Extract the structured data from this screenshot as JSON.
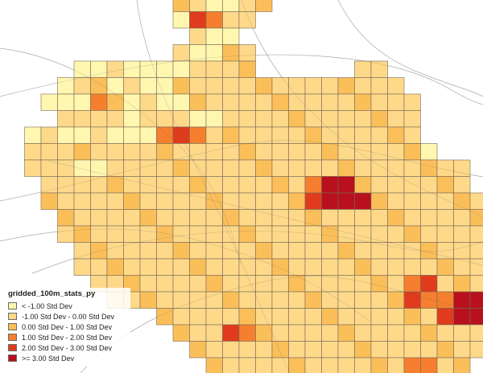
{
  "legend": {
    "title": "gridded_100m_stats_py",
    "classes": [
      {
        "label": "< -1.00 Std Dev",
        "color": "#fff7b0"
      },
      {
        "label": "-1.00 Std Dev - 0.00 Std Dev",
        "color": "#fed98a"
      },
      {
        "label": "0.00 Std Dev - 1.00 Std Dev",
        "color": "#fbbf5a"
      },
      {
        "label": "1.00 Std Dev - 2.00 Std Dev",
        "color": "#f57f2e"
      },
      {
        "label": "2.00 Std Dev - 3.00 Std Dev",
        "color": "#e03b1c"
      },
      {
        "label": ">= 3.00 Std Dev",
        "color": "#b8101c"
      }
    ]
  },
  "grid": {
    "class_rows": [
      "..........,,ll,,............",
      "..........lrr,,.............",
      "...........,ll..............",
      "..........,ll,,.............",
      "....ll,llll,,,,......,,.....",
      "...l,,l,ll,,,,,,,,,,,,,,.....",
      "..lllr,l,ll,,,,,,,,,,,,,,.....",
      "...,,,,l,,,ll,,,,,,,,,,,,....",
      ".l,ll,lllrrr,,,,,,,,,,,,,.....",
      ".,,,,,,,,,,,,,,,,,,,,,,,,l....",
      ".,,,ll,,,,,,,,,,,,,,,,,,,,,,..",
      "..,,,,,,,,,,,,,,,,rRR,,,,,,,..",
      "..,,,,,,,,,,,,,,,,rRRR,,,,,,,.",
      "...,,,,,,,,,,,,,,,,,,,,,,,,,,,",
      "...,,,,,,,,,,,,,,,,,,,,,,,,,,,",
      "....,,,,,,,,,,,,,,,,,,,,,,,,,,",
      "....,,,,,,,,,,,,,,,,,,,,,,,,,,",
      ".....,,,,,,,,,,,,,,,,,,,rr,,,,",
      "......,,,,,,,,,,,,,,,,,,rrrRR,",
      ".........,,,,,,,,,,,,,,,,,rRR,",
      "..........,,,rr,,,,,,,,,,,,,,.",
      "...........,,,,,,,,,,,,,,,,,,,",
      "............,,,,,,,,,,,,rr,,..",
      ".............,,,,,,,,,,,,,,,..",
      ".................,,,,,,,,,,..."
    ]
  }
}
